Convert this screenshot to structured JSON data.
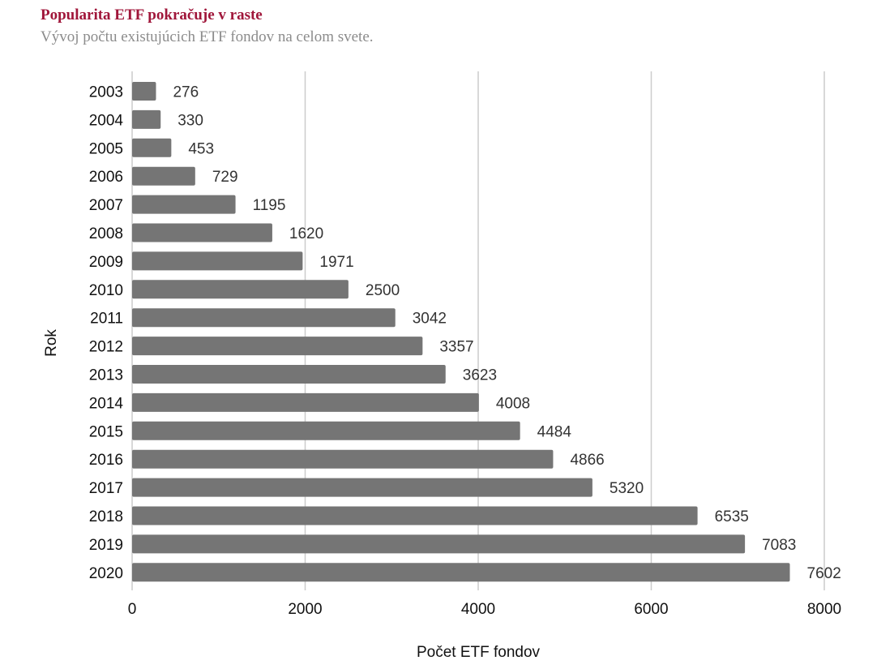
{
  "header": {
    "title": "Popularita ETF pokračuje v raste",
    "subtitle": "Vývoj počtu existujúcich ETF fondov na celom svete."
  },
  "chart_data": {
    "type": "bar",
    "orientation": "horizontal",
    "categories": [
      "2003",
      "2004",
      "2005",
      "2006",
      "2007",
      "2008",
      "2009",
      "2010",
      "2011",
      "2012",
      "2013",
      "2014",
      "2015",
      "2016",
      "2017",
      "2018",
      "2019",
      "2020"
    ],
    "values": [
      276,
      330,
      453,
      729,
      1195,
      1620,
      1971,
      2500,
      3042,
      3357,
      3623,
      4008,
      4484,
      4866,
      5320,
      6535,
      7083,
      7602
    ],
    "xlabel": "Počet ETF fondov",
    "ylabel": "Rok",
    "xlim": [
      0,
      8000
    ],
    "xticks": [
      0,
      2000,
      4000,
      6000,
      8000
    ],
    "grid": true,
    "bar_color": "#757575",
    "data_labels": true
  }
}
